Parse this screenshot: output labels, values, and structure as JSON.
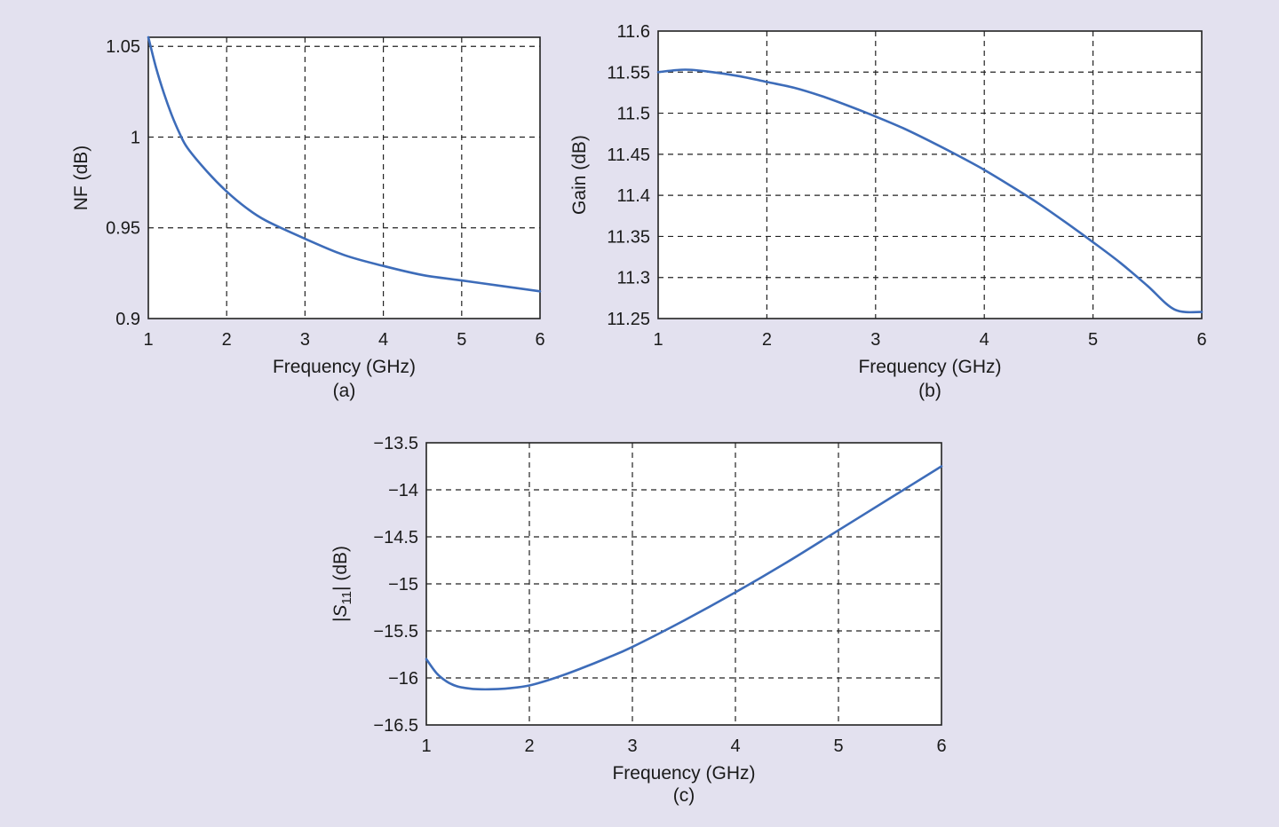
{
  "line_color": "#3d6cb9",
  "chart_data": [
    {
      "type": "line",
      "panel_label": "(a)",
      "xlabel": "Frequency (GHz)",
      "ylabel": "NF (dB)",
      "xlim": [
        1,
        6
      ],
      "ylim": [
        0.9,
        1.055
      ],
      "xticks": [
        1,
        2,
        3,
        4,
        5,
        6
      ],
      "xtick_labels": [
        "1",
        "2",
        "3",
        "4",
        "5",
        "6"
      ],
      "yticks": [
        0.9,
        0.95,
        1,
        1.05
      ],
      "ytick_labels": [
        "0.9",
        "0.95",
        "1",
        "1.05"
      ],
      "grid": true,
      "series": [
        {
          "x": [
            1.0,
            1.1,
            1.2,
            1.3,
            1.4,
            1.5,
            1.75,
            2.0,
            2.25,
            2.5,
            3.0,
            3.5,
            4.0,
            4.5,
            5.0,
            5.5,
            6.0
          ],
          "y": [
            1.055,
            1.038,
            1.024,
            1.012,
            1.002,
            0.994,
            0.981,
            0.97,
            0.961,
            0.954,
            0.944,
            0.935,
            0.929,
            0.924,
            0.921,
            0.918,
            0.915
          ]
        }
      ]
    },
    {
      "type": "line",
      "panel_label": "(b)",
      "xlabel": "Frequency (GHz)",
      "ylabel": "Gain (dB)",
      "xlim": [
        1,
        6
      ],
      "ylim": [
        11.25,
        11.6
      ],
      "xticks": [
        1,
        2,
        3,
        4,
        5,
        6
      ],
      "xtick_labels": [
        "1",
        "2",
        "3",
        "4",
        "5",
        "6"
      ],
      "yticks": [
        11.25,
        11.3,
        11.35,
        11.4,
        11.45,
        11.5,
        11.55,
        11.6
      ],
      "ytick_labels": [
        "11.25",
        "11.3",
        "11.35",
        "11.4",
        "11.45",
        "11.5",
        "11.55",
        "11.6"
      ],
      "grid": true,
      "series": [
        {
          "x": [
            1.0,
            1.25,
            1.5,
            1.75,
            2.0,
            2.25,
            2.5,
            2.75,
            3.0,
            3.25,
            3.5,
            3.75,
            4.0,
            4.25,
            4.5,
            4.75,
            5.0,
            5.25,
            5.5,
            5.75,
            6.0
          ],
          "y": [
            11.55,
            11.553,
            11.55,
            11.545,
            11.538,
            11.531,
            11.521,
            11.509,
            11.496,
            11.482,
            11.466,
            11.449,
            11.431,
            11.411,
            11.39,
            11.367,
            11.343,
            11.318,
            11.29,
            11.261,
            11.258
          ]
        }
      ]
    },
    {
      "type": "line",
      "panel_label": "(c)",
      "xlabel": "Frequency (GHz)",
      "ylabel": "|S11| (dB)",
      "ylabel_main": "S",
      "ylabel_sub": "11",
      "ylabel_unit": " (dB)",
      "xlim": [
        1,
        6
      ],
      "ylim": [
        -16.5,
        -13.5
      ],
      "xticks": [
        1,
        2,
        3,
        4,
        5,
        6
      ],
      "xtick_labels": [
        "1",
        "2",
        "3",
        "4",
        "5",
        "6"
      ],
      "yticks": [
        -16.5,
        -16,
        -15.5,
        -15,
        -14.5,
        -14,
        -13.5
      ],
      "ytick_labels": [
        "−16.5",
        "−16",
        "−15.5",
        "−15",
        "−14.5",
        "−14",
        "−13.5"
      ],
      "grid": true,
      "series": [
        {
          "x": [
            1.0,
            1.1,
            1.2,
            1.3,
            1.4,
            1.5,
            1.65,
            1.8,
            2.0,
            2.25,
            2.5,
            2.75,
            3.0,
            3.5,
            4.0,
            4.5,
            5.0,
            5.5,
            6.0
          ],
          "y": [
            -15.8,
            -15.95,
            -16.04,
            -16.09,
            -16.11,
            -16.12,
            -16.12,
            -16.11,
            -16.08,
            -16.0,
            -15.9,
            -15.79,
            -15.67,
            -15.39,
            -15.09,
            -14.77,
            -14.43,
            -14.09,
            -13.75
          ]
        }
      ]
    }
  ]
}
